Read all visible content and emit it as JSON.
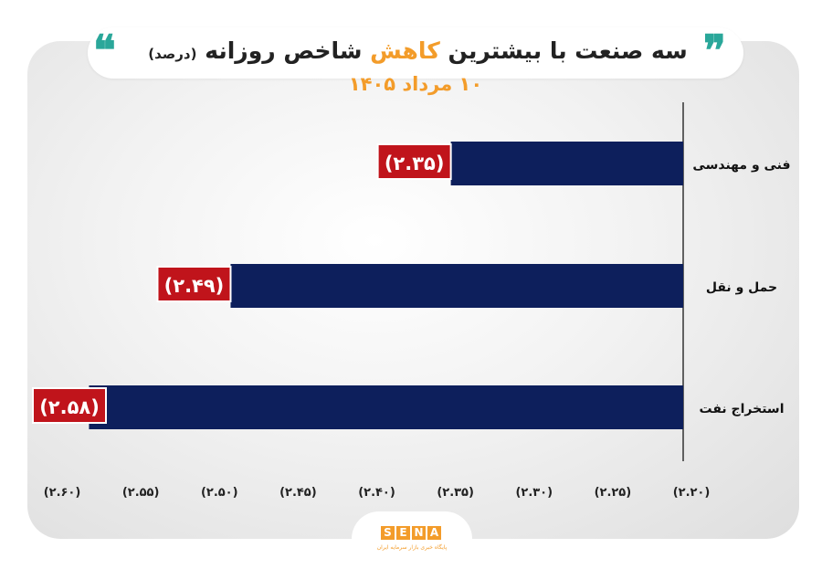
{
  "header": {
    "quote_open": "❞",
    "quote_close": "❝",
    "title_pre": "سه صنعت با بیشترین ",
    "title_highlight": "کاهش",
    "title_post": " شاخص روزانه ",
    "title_unit": "(درصد)",
    "subtitle": "۱۰ مرداد ۱۴۰۵"
  },
  "logo": {
    "letters": [
      "S",
      "E",
      "N",
      "A"
    ],
    "tagline": "پایگاه خبری بازار سرمایه ایران"
  },
  "colors": {
    "bar": "#0d1f5c",
    "label_box": "#c0141b",
    "accent": "#f39c2a",
    "quote": "#2aa79a"
  },
  "chart_data": {
    "type": "bar",
    "orientation": "horizontal",
    "categories": [
      "فنی و مهندسی",
      "حمل و نقل",
      "استخراج نفت"
    ],
    "values": [
      -2.35,
      -2.49,
      -2.58
    ],
    "data_labels": [
      "(۲.۳۵)",
      "(۲.۴۹)",
      "(۲.۵۸)"
    ],
    "xlim": [
      -2.6,
      -2.2
    ],
    "x_ticks": [
      -2.6,
      -2.55,
      -2.5,
      -2.45,
      -2.4,
      -2.35,
      -2.3,
      -2.25,
      -2.2
    ],
    "x_tick_labels": [
      "(۲.۶۰)",
      "(۲.۵۵)",
      "(۲.۵۰)",
      "(۲.۴۵)",
      "(۲.۴۰)",
      "(۲.۳۵)",
      "(۲.۳۰)",
      "(۲.۲۵)",
      "(۲.۲۰)"
    ],
    "axis_direction": "reversed",
    "grid": false,
    "legend": "none"
  }
}
